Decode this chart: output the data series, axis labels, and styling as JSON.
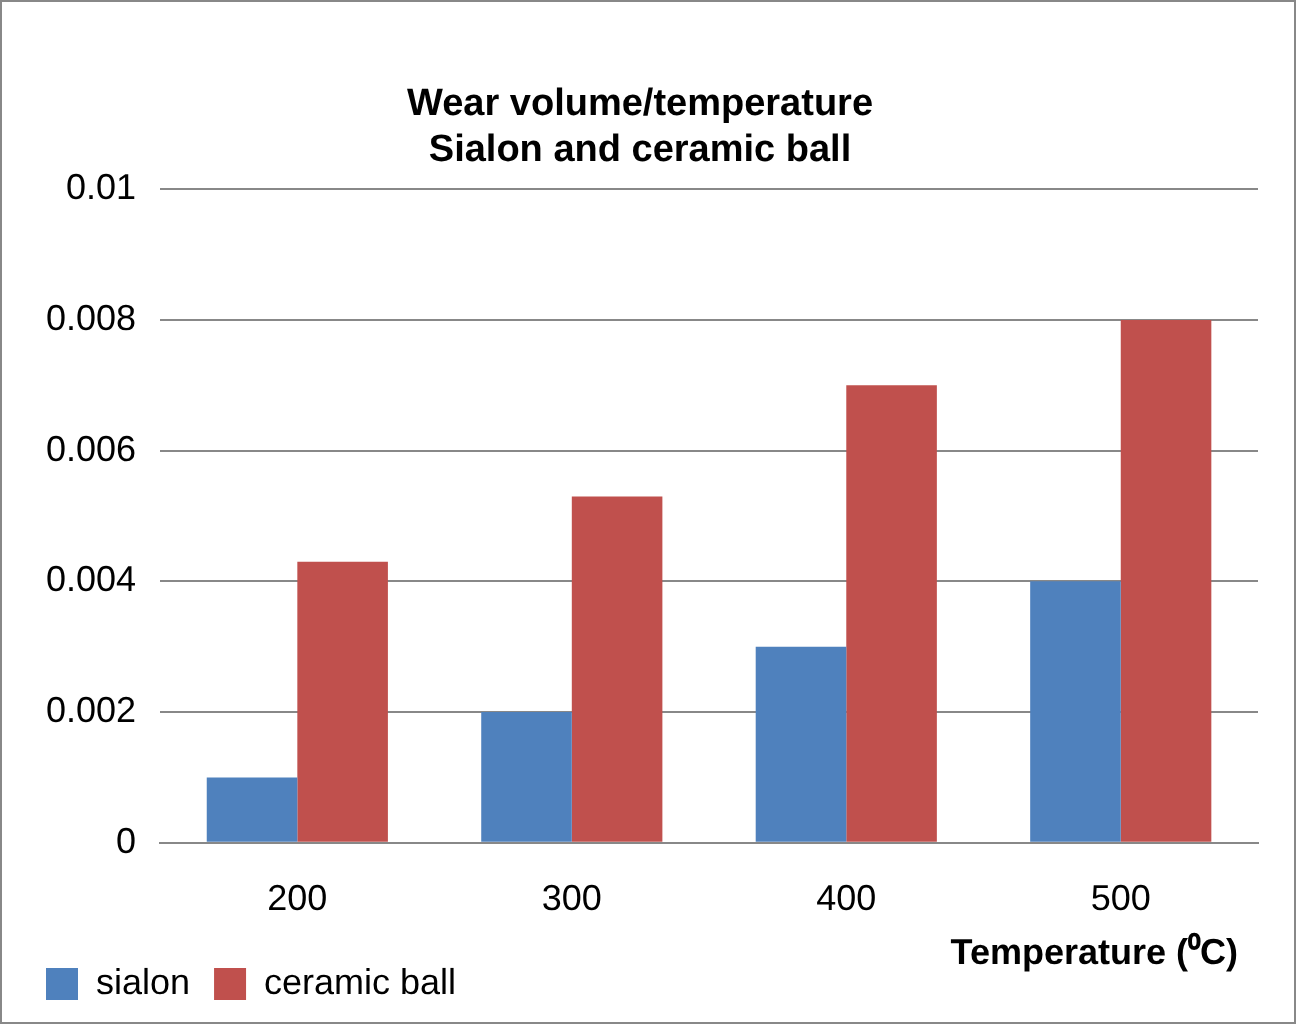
{
  "chart_data": {
    "type": "bar",
    "title": "Wear volume/temperature\nSialon and ceramic ball",
    "xlabel": "Temperature (⁰C)",
    "categories": [
      "200",
      "300",
      "400",
      "500"
    ],
    "series": [
      {
        "name": "sialon",
        "color": "#4f81bd",
        "values": [
          0.001,
          0.002,
          0.003,
          0.004
        ]
      },
      {
        "name": "ceramic ball",
        "color": "#c0504d",
        "values": [
          0.0043,
          0.0053,
          0.007,
          0.008
        ]
      }
    ],
    "ylim": [
      0,
      0.01
    ],
    "yticks": [
      0,
      0.002,
      0.004,
      0.006,
      0.008,
      0.01
    ],
    "grid": "y",
    "legend": "bottom left"
  }
}
